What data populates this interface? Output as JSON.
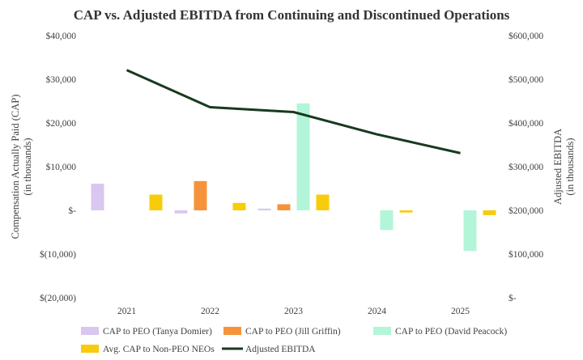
{
  "chart_data": {
    "type": "bar",
    "title": "CAP vs. Adjusted EBITDA from Continuing and Discontinued Operations",
    "categories": [
      "2021",
      "2022",
      "2023",
      "2024",
      "2025"
    ],
    "ylabel_left": [
      "Compensation Actually Paid (CAP)",
      "(in thousands)"
    ],
    "ylabel_right": [
      "Adjusted EBITDA",
      "(in thousands)"
    ],
    "ylim_left": [
      -20000,
      40000
    ],
    "ylim_right": [
      0,
      600000
    ],
    "yticks_left": [
      "$40,000",
      "$30,000",
      "$20,000",
      "$10,000",
      "$-",
      "$(10,000)",
      "$(20,000)"
    ],
    "yticks_right": [
      "$600,000",
      "$500,000",
      "$400,000",
      "$300,000",
      "$200,000",
      "$100,000",
      "$-"
    ],
    "grid": false,
    "legend_position": "bottom",
    "series": [
      {
        "name": "CAP to PEO (Tanya Domier)",
        "type": "bar",
        "axis": "left",
        "color": "#d9c7f0",
        "values": [
          6100,
          -700,
          400,
          null,
          null
        ]
      },
      {
        "name": "CAP to PEO (Jill Griffin)",
        "type": "bar",
        "axis": "left",
        "color": "#f6933a",
        "values": [
          null,
          6700,
          1400,
          null,
          null
        ]
      },
      {
        "name": "CAP to PEO (David Peacock)",
        "type": "bar",
        "axis": "left",
        "color": "#b3f5d9",
        "values": [
          null,
          null,
          24500,
          -4500,
          -9300
        ]
      },
      {
        "name": "Avg. CAP to Non-PEO NEOs",
        "type": "bar",
        "axis": "left",
        "color": "#f8cc0a",
        "values": [
          3600,
          1700,
          3600,
          -500,
          -1100
        ]
      },
      {
        "name": "Adjusted EBITDA",
        "type": "line",
        "axis": "right",
        "color": "#183a1e",
        "values": [
          521000,
          436000,
          425000,
          374000,
          331000
        ]
      }
    ]
  }
}
